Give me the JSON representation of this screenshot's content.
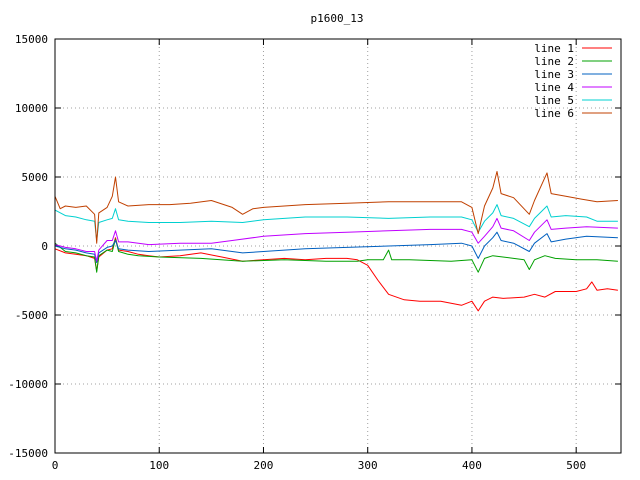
{
  "chart_data": {
    "type": "line",
    "title": "p1600_13",
    "xlabel": "",
    "ylabel": "",
    "xlim": [
      0,
      543
    ],
    "ylim": [
      -15000,
      15000
    ],
    "x_ticks": [
      0,
      100,
      200,
      300,
      400,
      500
    ],
    "y_ticks": [
      -15000,
      -10000,
      -5000,
      0,
      5000,
      10000,
      15000
    ],
    "x_tick_labels": [
      "0",
      "100",
      "200",
      "300",
      "400",
      "500"
    ],
    "y_tick_labels": [
      "-15000",
      "-10000",
      "-5000",
      "0",
      "5000",
      "10000",
      "15000"
    ],
    "grid": true,
    "legend_position": "top-right",
    "series": [
      {
        "name": "line 1",
        "color": "#ff0000",
        "points": [
          [
            0,
            -200
          ],
          [
            10,
            -500
          ],
          [
            20,
            -600
          ],
          [
            30,
            -700
          ],
          [
            38,
            -900
          ],
          [
            40,
            -1800
          ],
          [
            42,
            -800
          ],
          [
            50,
            -300
          ],
          [
            55,
            -200
          ],
          [
            58,
            600
          ],
          [
            61,
            -300
          ],
          [
            70,
            -400
          ],
          [
            80,
            -600
          ],
          [
            90,
            -700
          ],
          [
            100,
            -800
          ],
          [
            120,
            -700
          ],
          [
            140,
            -500
          ],
          [
            160,
            -800
          ],
          [
            180,
            -1100
          ],
          [
            200,
            -1000
          ],
          [
            220,
            -900
          ],
          [
            240,
            -1000
          ],
          [
            260,
            -900
          ],
          [
            280,
            -900
          ],
          [
            290,
            -1000
          ],
          [
            300,
            -1400
          ],
          [
            310,
            -2500
          ],
          [
            320,
            -3500
          ],
          [
            335,
            -3900
          ],
          [
            350,
            -4000
          ],
          [
            370,
            -4000
          ],
          [
            390,
            -4300
          ],
          [
            400,
            -4000
          ],
          [
            406,
            -4700
          ],
          [
            412,
            -4000
          ],
          [
            420,
            -3700
          ],
          [
            430,
            -3800
          ],
          [
            450,
            -3700
          ],
          [
            460,
            -3500
          ],
          [
            470,
            -3700
          ],
          [
            480,
            -3300
          ],
          [
            500,
            -3300
          ],
          [
            510,
            -3100
          ],
          [
            515,
            -2600
          ],
          [
            520,
            -3200
          ],
          [
            530,
            -3100
          ],
          [
            540,
            -3200
          ]
        ]
      },
      {
        "name": "line 2",
        "color": "#00a000",
        "points": [
          [
            0,
            200
          ],
          [
            10,
            -400
          ],
          [
            20,
            -500
          ],
          [
            30,
            -700
          ],
          [
            38,
            -800
          ],
          [
            40,
            -1900
          ],
          [
            42,
            -700
          ],
          [
            50,
            -300
          ],
          [
            55,
            -400
          ],
          [
            58,
            500
          ],
          [
            61,
            -400
          ],
          [
            70,
            -600
          ],
          [
            80,
            -700
          ],
          [
            100,
            -800
          ],
          [
            140,
            -900
          ],
          [
            180,
            -1100
          ],
          [
            220,
            -1000
          ],
          [
            260,
            -1100
          ],
          [
            290,
            -1100
          ],
          [
            300,
            -1000
          ],
          [
            315,
            -1000
          ],
          [
            320,
            -300
          ],
          [
            323,
            -1000
          ],
          [
            340,
            -1000
          ],
          [
            380,
            -1100
          ],
          [
            400,
            -1000
          ],
          [
            406,
            -1900
          ],
          [
            412,
            -900
          ],
          [
            420,
            -700
          ],
          [
            440,
            -900
          ],
          [
            450,
            -1000
          ],
          [
            455,
            -1700
          ],
          [
            460,
            -1000
          ],
          [
            470,
            -700
          ],
          [
            480,
            -900
          ],
          [
            500,
            -1000
          ],
          [
            520,
            -1000
          ],
          [
            540,
            -1100
          ]
        ]
      },
      {
        "name": "line 3",
        "color": "#0060c0",
        "points": [
          [
            0,
            0
          ],
          [
            10,
            -200
          ],
          [
            20,
            -300
          ],
          [
            30,
            -500
          ],
          [
            38,
            -600
          ],
          [
            40,
            -1200
          ],
          [
            42,
            -500
          ],
          [
            50,
            -100
          ],
          [
            55,
            0
          ],
          [
            58,
            400
          ],
          [
            61,
            -200
          ],
          [
            70,
            -300
          ],
          [
            90,
            -400
          ],
          [
            120,
            -300
          ],
          [
            150,
            -200
          ],
          [
            180,
            -500
          ],
          [
            200,
            -400
          ],
          [
            240,
            -200
          ],
          [
            280,
            -100
          ],
          [
            320,
            0
          ],
          [
            360,
            100
          ],
          [
            390,
            200
          ],
          [
            400,
            0
          ],
          [
            406,
            -900
          ],
          [
            412,
            0
          ],
          [
            420,
            600
          ],
          [
            424,
            1000
          ],
          [
            428,
            400
          ],
          [
            440,
            200
          ],
          [
            455,
            -400
          ],
          [
            460,
            200
          ],
          [
            472,
            900
          ],
          [
            476,
            300
          ],
          [
            490,
            500
          ],
          [
            510,
            700
          ],
          [
            540,
            600
          ]
        ]
      },
      {
        "name": "line 4",
        "color": "#c000ff",
        "points": [
          [
            0,
            100
          ],
          [
            10,
            -100
          ],
          [
            20,
            -200
          ],
          [
            30,
            -400
          ],
          [
            38,
            -400
          ],
          [
            40,
            -1100
          ],
          [
            42,
            -300
          ],
          [
            50,
            400
          ],
          [
            55,
            400
          ],
          [
            58,
            1100
          ],
          [
            61,
            300
          ],
          [
            70,
            300
          ],
          [
            90,
            100
          ],
          [
            120,
            200
          ],
          [
            150,
            200
          ],
          [
            170,
            400
          ],
          [
            200,
            700
          ],
          [
            240,
            900
          ],
          [
            280,
            1000
          ],
          [
            320,
            1100
          ],
          [
            360,
            1200
          ],
          [
            390,
            1200
          ],
          [
            400,
            1000
          ],
          [
            406,
            200
          ],
          [
            412,
            700
          ],
          [
            420,
            1400
          ],
          [
            424,
            2000
          ],
          [
            428,
            1300
          ],
          [
            440,
            1100
          ],
          [
            455,
            400
          ],
          [
            460,
            1000
          ],
          [
            472,
            1900
          ],
          [
            476,
            1200
          ],
          [
            490,
            1300
          ],
          [
            510,
            1400
          ],
          [
            540,
            1300
          ]
        ]
      },
      {
        "name": "line 5",
        "color": "#00d0d0",
        "points": [
          [
            0,
            2600
          ],
          [
            10,
            2200
          ],
          [
            20,
            2100
          ],
          [
            30,
            1900
          ],
          [
            38,
            1800
          ],
          [
            40,
            400
          ],
          [
            42,
            1700
          ],
          [
            50,
            1900
          ],
          [
            55,
            2000
          ],
          [
            58,
            2700
          ],
          [
            61,
            1900
          ],
          [
            70,
            1800
          ],
          [
            90,
            1700
          ],
          [
            120,
            1700
          ],
          [
            150,
            1800
          ],
          [
            180,
            1700
          ],
          [
            200,
            1900
          ],
          [
            240,
            2100
          ],
          [
            280,
            2100
          ],
          [
            320,
            2000
          ],
          [
            360,
            2100
          ],
          [
            390,
            2100
          ],
          [
            400,
            1900
          ],
          [
            406,
            1000
          ],
          [
            412,
            1800
          ],
          [
            420,
            2400
          ],
          [
            424,
            3000
          ],
          [
            428,
            2200
          ],
          [
            440,
            2000
          ],
          [
            455,
            1400
          ],
          [
            460,
            2000
          ],
          [
            472,
            2900
          ],
          [
            476,
            2100
          ],
          [
            490,
            2200
          ],
          [
            510,
            2100
          ],
          [
            520,
            1800
          ],
          [
            540,
            1800
          ]
        ]
      },
      {
        "name": "line 6",
        "color": "#c04000",
        "points": [
          [
            0,
            3600
          ],
          [
            5,
            2700
          ],
          [
            10,
            2900
          ],
          [
            20,
            2800
          ],
          [
            30,
            2900
          ],
          [
            38,
            2300
          ],
          [
            40,
            200
          ],
          [
            42,
            2400
          ],
          [
            50,
            2800
          ],
          [
            55,
            3600
          ],
          [
            58,
            5000
          ],
          [
            61,
            3200
          ],
          [
            70,
            2900
          ],
          [
            90,
            3000
          ],
          [
            110,
            3000
          ],
          [
            130,
            3100
          ],
          [
            150,
            3300
          ],
          [
            170,
            2800
          ],
          [
            180,
            2300
          ],
          [
            190,
            2700
          ],
          [
            200,
            2800
          ],
          [
            240,
            3000
          ],
          [
            280,
            3100
          ],
          [
            320,
            3200
          ],
          [
            360,
            3200
          ],
          [
            390,
            3200
          ],
          [
            400,
            2800
          ],
          [
            406,
            900
          ],
          [
            412,
            2900
          ],
          [
            420,
            4200
          ],
          [
            424,
            5400
          ],
          [
            428,
            3800
          ],
          [
            440,
            3500
          ],
          [
            455,
            2300
          ],
          [
            460,
            3300
          ],
          [
            472,
            5300
          ],
          [
            476,
            3800
          ],
          [
            490,
            3600
          ],
          [
            505,
            3400
          ],
          [
            520,
            3200
          ],
          [
            540,
            3300
          ]
        ]
      }
    ]
  }
}
